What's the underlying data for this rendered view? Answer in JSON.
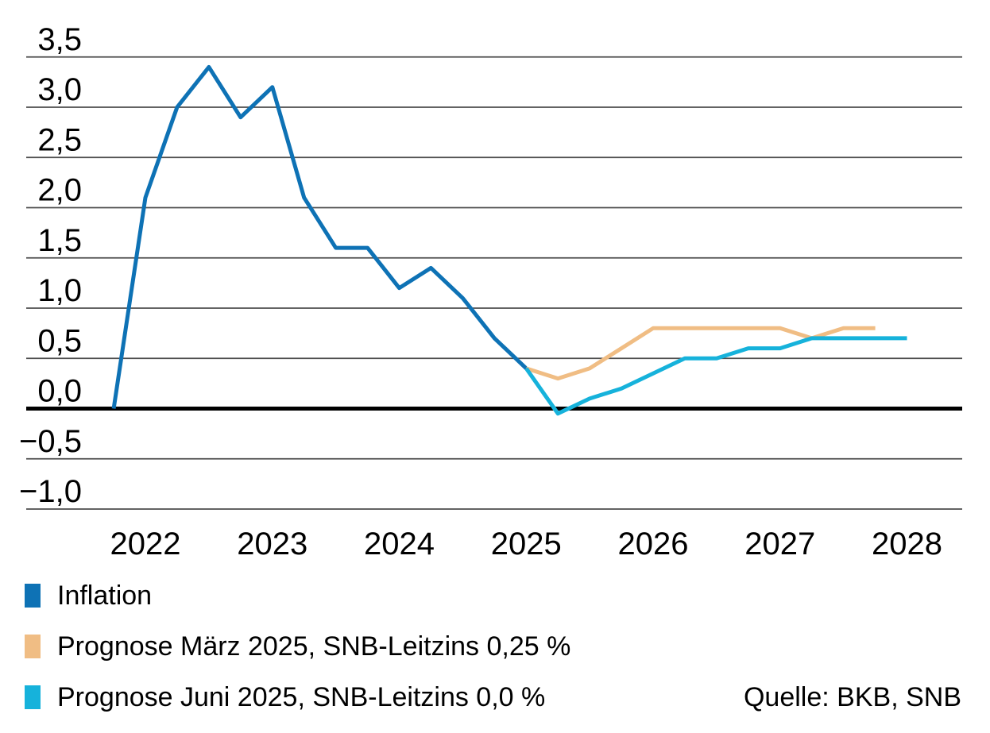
{
  "source_label": "Quelle: BKB, SNB",
  "legend": [
    {
      "label": "Inflation",
      "color": "#0E72B5"
    },
    {
      "label": "Prognose März 2025, SNB-Leitzins 0,25 %",
      "color": "#F0BD84"
    },
    {
      "label": "Prognose Juni 2025, SNB-Leitzins 0,0 %",
      "color": "#16B2DB"
    }
  ],
  "chart_data": {
    "type": "line",
    "title": "",
    "xlabel": "",
    "ylabel": "",
    "grid": "horizontal",
    "legend_position": "bottom-left",
    "unit": "percent, quarterly",
    "y_axis": {
      "ticks": [
        {
          "value": 3.5,
          "label": "3,5"
        },
        {
          "value": 3.0,
          "label": "3,0"
        },
        {
          "value": 2.5,
          "label": "2,5"
        },
        {
          "value": 2.0,
          "label": "2,0"
        },
        {
          "value": 1.5,
          "label": "1,5"
        },
        {
          "value": 1.0,
          "label": "1,0"
        },
        {
          "value": 0.5,
          "label": "0,5"
        },
        {
          "value": 0.0,
          "label": "0,0"
        },
        {
          "value": -0.5,
          "label": "−0,5"
        },
        {
          "value": -1.0,
          "label": "−1,0"
        }
      ],
      "ylim": [
        -1.0,
        3.5
      ],
      "zero_line_emphasized": true
    },
    "x_axis": {
      "years": [
        "2022",
        "2023",
        "2024",
        "2025",
        "2026",
        "2027",
        "2028"
      ],
      "xlim": [
        2021.75,
        2028.0
      ]
    },
    "series": [
      {
        "id": "inflation",
        "name": "Inflation",
        "color": "#0E72B5",
        "stroke_width": 5,
        "t": [
          2021.75,
          2022.0,
          2022.25,
          2022.5,
          2022.75,
          2023.0,
          2023.25,
          2023.5,
          2023.75,
          2024.0,
          2024.25,
          2024.5,
          2024.75,
          2025.0
        ],
        "values": [
          0.0,
          2.1,
          3.0,
          3.4,
          2.9,
          3.2,
          2.1,
          1.6,
          1.6,
          1.2,
          1.4,
          1.1,
          0.7,
          0.4
        ]
      },
      {
        "id": "prognose-maerz-2025",
        "name": "Prognose März 2025, SNB-Leitzins 0,25 %",
        "color": "#F0BD84",
        "stroke_width": 5,
        "t": [
          2025.0,
          2025.25,
          2025.5,
          2025.75,
          2026.0,
          2026.25,
          2026.5,
          2026.75,
          2027.0,
          2027.25,
          2027.5,
          2027.75
        ],
        "values": [
          0.4,
          0.3,
          0.4,
          0.6,
          0.8,
          0.8,
          0.8,
          0.8,
          0.8,
          0.7,
          0.8,
          0.8
        ]
      },
      {
        "id": "prognose-juni-2025",
        "name": "Prognose Juni 2025, SNB-Leitzins 0,0 %",
        "color": "#16B2DB",
        "stroke_width": 5,
        "t": [
          2025.0,
          2025.25,
          2025.5,
          2025.75,
          2026.0,
          2026.25,
          2026.5,
          2026.75,
          2027.0,
          2027.25,
          2027.5,
          2027.75,
          2028.0
        ],
        "values": [
          0.4,
          -0.05,
          0.1,
          0.2,
          0.35,
          0.5,
          0.5,
          0.6,
          0.6,
          0.7,
          0.7,
          0.7,
          0.7
        ]
      }
    ]
  }
}
